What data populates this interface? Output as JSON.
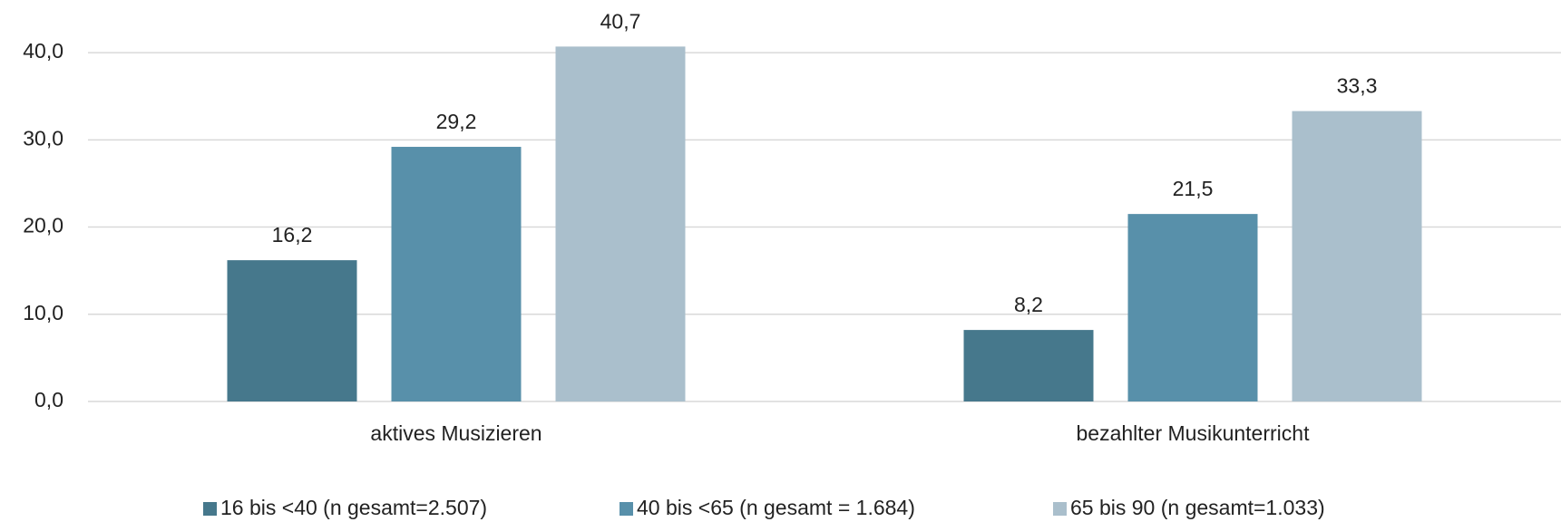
{
  "chart_data": {
    "type": "bar",
    "categories": [
      "aktives Musizieren",
      "bezahlter Musikunterricht"
    ],
    "series": [
      {
        "name": "16 bis <40 (n gesamt=2.507)",
        "color": "#46788c",
        "values": [
          16.2,
          8.2
        ],
        "value_labels": [
          "16,2",
          "8,2"
        ]
      },
      {
        "name": "40 bis <65 (n gesamt = 1.684)",
        "color": "#5890aa",
        "values": [
          29.2,
          21.5
        ],
        "value_labels": [
          "29,2",
          "21,5"
        ]
      },
      {
        "name": "65 bis 90 (n gesamt=1.033)",
        "color": "#aabfcc",
        "values": [
          40.7,
          33.3
        ],
        "value_labels": [
          "40,7",
          "33,3"
        ]
      }
    ],
    "ylim": [
      0,
      45
    ],
    "yticks": [
      {
        "value": 0,
        "label": "0,0"
      },
      {
        "value": 10,
        "label": "10,0"
      },
      {
        "value": 20,
        "label": "20,0"
      },
      {
        "value": 30,
        "label": "30,0"
      },
      {
        "value": 40,
        "label": "40,0"
      }
    ],
    "grid": true,
    "legend": "bottom"
  }
}
